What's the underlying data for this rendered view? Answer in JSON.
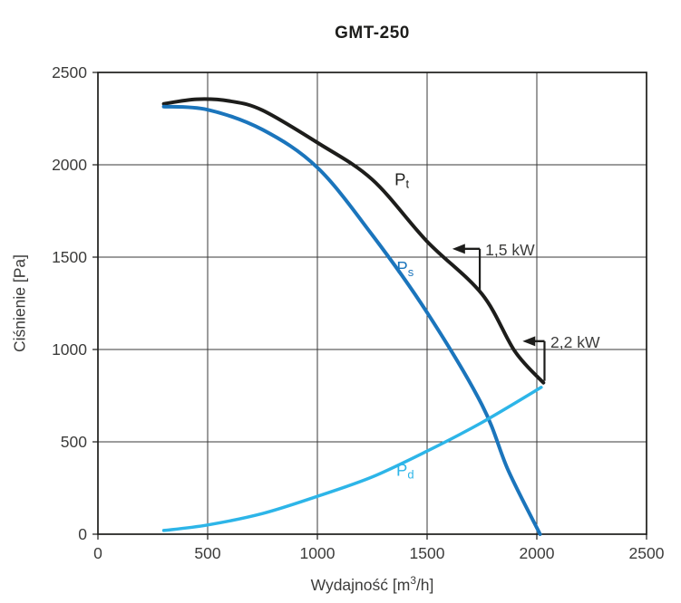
{
  "chart_data": {
    "type": "line",
    "title": "GMT-250",
    "ylabel": "Ciśnienie [Pa]",
    "xlabel": {
      "prefix": "Wydajność [m",
      "sup": "3",
      "suffix": "/h]"
    },
    "xlim": [
      0,
      2500
    ],
    "ylim": [
      0,
      2500
    ],
    "xticks": [
      0,
      500,
      1000,
      1500,
      2000,
      2500
    ],
    "yticks": [
      0,
      500,
      1000,
      1500,
      2000,
      2500
    ],
    "grid": true,
    "legend_position": "inline-curve-labels",
    "colors": {
      "grid": "#3a3a39",
      "frame": "#1d1d1b",
      "text": "#3c3c3b",
      "annotation": "#1d1d1b"
    },
    "series": [
      {
        "name": "Pt",
        "label": {
          "base": "P",
          "sub": "t"
        },
        "color": "#1d1d1b",
        "width": 4,
        "label_pos": [
          1385,
          1925
        ],
        "points": [
          [
            300,
            2330
          ],
          [
            450,
            2355
          ],
          [
            600,
            2345
          ],
          [
            750,
            2295
          ],
          [
            1000,
            2120
          ],
          [
            1250,
            1920
          ],
          [
            1500,
            1585
          ],
          [
            1750,
            1300
          ],
          [
            1900,
            990
          ],
          [
            2030,
            820
          ]
        ]
      },
      {
        "name": "Ps",
        "label": {
          "base": "P",
          "sub": "s"
        },
        "color": "#1b75bc",
        "width": 4,
        "label_pos": [
          1400,
          1445
        ],
        "points": [
          [
            300,
            2315
          ],
          [
            500,
            2298
          ],
          [
            750,
            2190
          ],
          [
            1000,
            1985
          ],
          [
            1250,
            1620
          ],
          [
            1500,
            1200
          ],
          [
            1750,
            700
          ],
          [
            1870,
            345
          ],
          [
            2015,
            0
          ]
        ]
      },
      {
        "name": "Pd",
        "label": {
          "base": "P",
          "sub": "d"
        },
        "color": "#2db5e8",
        "width": 3.5,
        "label_pos": [
          1400,
          350
        ],
        "points": [
          [
            300,
            20
          ],
          [
            500,
            50
          ],
          [
            750,
            112
          ],
          [
            1000,
            205
          ],
          [
            1250,
            310
          ],
          [
            1500,
            450
          ],
          [
            1750,
            605
          ],
          [
            2020,
            795
          ]
        ]
      }
    ],
    "annotations": [
      {
        "label": "1,5 kW",
        "arrow_tip": [
          1615,
          1545
        ],
        "corner": [
          1740,
          1545
        ],
        "drop_to": [
          1740,
          1310
        ],
        "text_pos": [
          1765,
          1545
        ]
      },
      {
        "label": "2,2 kW",
        "arrow_tip": [
          1935,
          1045
        ],
        "corner": [
          2035,
          1045
        ],
        "drop_to": [
          2035,
          830
        ],
        "text_pos": [
          2062,
          1045
        ]
      }
    ]
  }
}
